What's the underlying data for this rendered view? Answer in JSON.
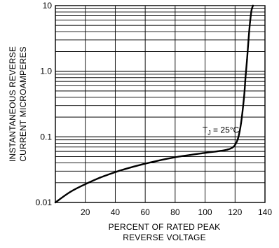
{
  "chart_data": {
    "type": "line",
    "xlabel": [
      "PERCENT OF RATED PEAK",
      "REVERSE VOLTAGE"
    ],
    "ylabel": [
      "INSTANTANEOUS REVERSE",
      "CURRENT MICROAMPERES"
    ],
    "xlim": [
      0,
      140
    ],
    "ylim": [
      0.01,
      10
    ],
    "y_scale": "log",
    "grid": true,
    "x_ticks": [
      20,
      40,
      60,
      80,
      100,
      120,
      140
    ],
    "x_tick_labels": [
      "20",
      "40",
      "60",
      "80",
      "100",
      "120",
      "140"
    ],
    "y_ticks": [
      0.01,
      0.1,
      1.0,
      10
    ],
    "y_tick_labels": [
      "0.01",
      "0.1",
      "1.0",
      "10"
    ],
    "annotation": {
      "subscript_base": "T",
      "subscript": "J",
      "rest": " = 25°C",
      "x": 117,
      "y": 0.105
    },
    "series": [
      {
        "x": [
          0,
          10,
          20,
          30,
          40,
          50,
          60,
          70,
          80,
          90,
          100,
          110,
          115,
          118,
          120,
          122,
          124,
          126,
          127,
          128,
          129,
          130,
          131,
          132
        ],
        "y": [
          0.01,
          0.0145,
          0.019,
          0.024,
          0.029,
          0.034,
          0.039,
          0.044,
          0.049,
          0.053,
          0.057,
          0.061,
          0.064,
          0.068,
          0.075,
          0.095,
          0.16,
          0.4,
          0.8,
          1.5,
          3.0,
          5.5,
          8.5,
          10
        ]
      }
    ]
  }
}
